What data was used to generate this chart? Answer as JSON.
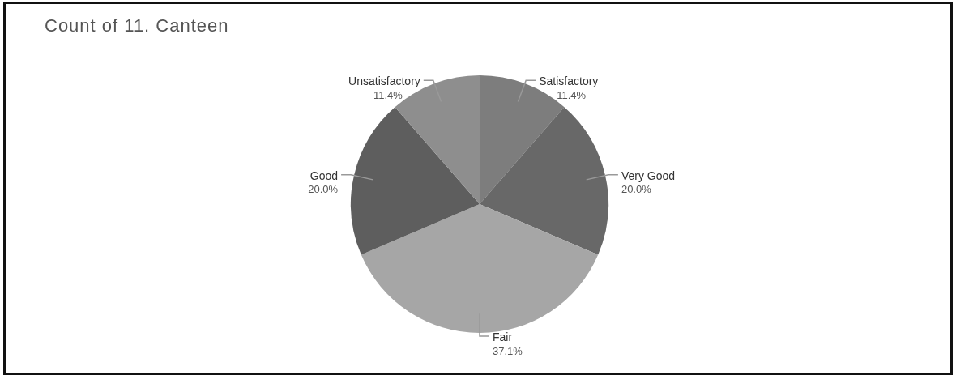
{
  "chart_data": {
    "type": "pie",
    "title": "Count of 11. Canteen",
    "categories": [
      "Satisfactory",
      "Very Good",
      "Fair",
      "Good",
      "Unsatisfactory"
    ],
    "values": [
      11.4,
      20.0,
      37.1,
      20.0,
      11.4
    ],
    "value_labels": [
      "11.4%",
      "20.0%",
      "37.1%",
      "20.0%",
      "11.4%"
    ],
    "colors": [
      "#7d7d7d",
      "#686868",
      "#a6a6a6",
      "#5e5e5e",
      "#8e8e8e"
    ],
    "legend": false
  }
}
